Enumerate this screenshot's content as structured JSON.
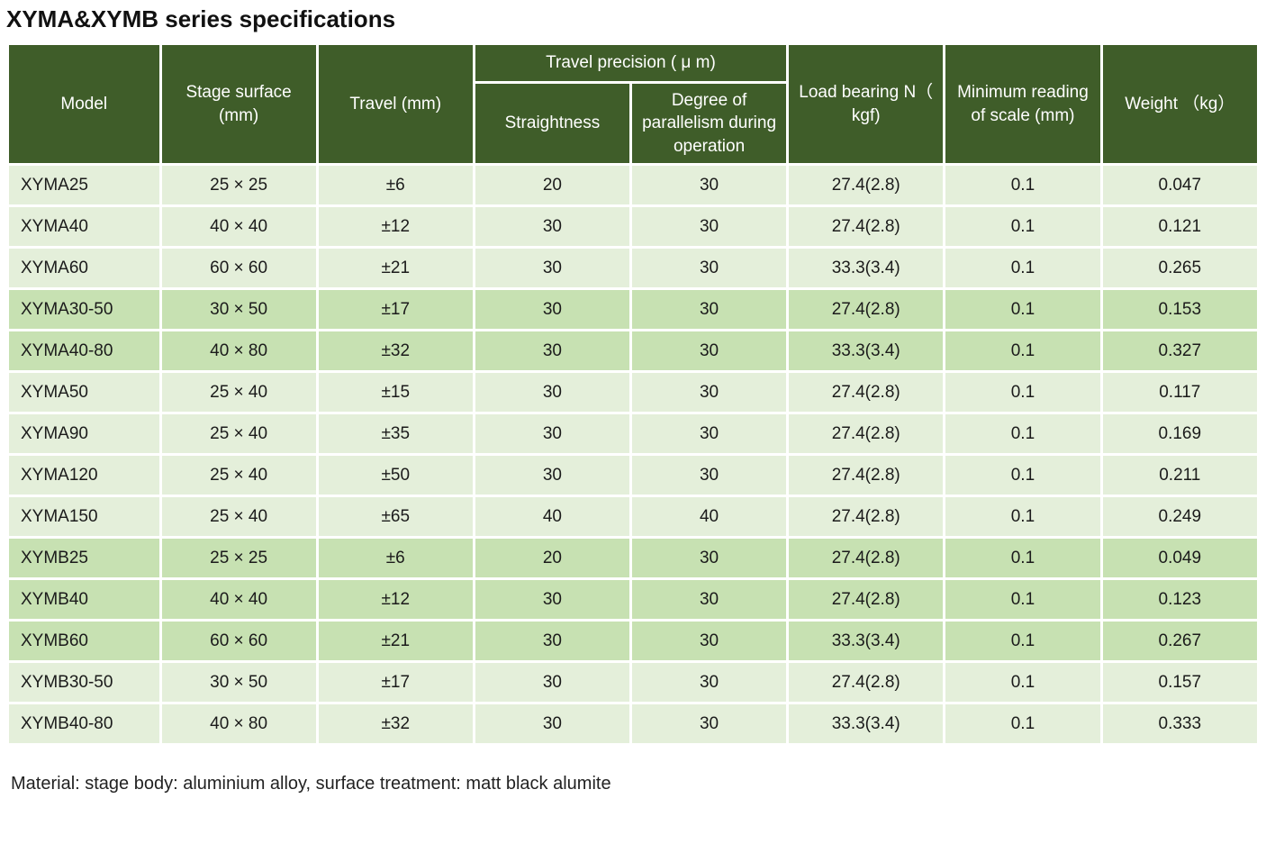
{
  "page": {
    "title": "XYMA&XYMB series specifications",
    "footnote": "Material: stage body: aluminium alloy, surface treatment: matt black alumite"
  },
  "colors": {
    "header_bg": "#3f5d29",
    "header_text": "#ffffff",
    "row_light_bg": "#e4efda",
    "row_medium_bg": "#c7e1b2",
    "grid_lines": "#ffffff",
    "cell_text": "#1b1b1b"
  },
  "table": {
    "headers": {
      "model": "Model",
      "stage_surface": "Stage surface\n(mm)",
      "travel": "Travel (mm)",
      "travel_precision_group": "Travel precision ( μ m)",
      "straightness": "Straightness",
      "parallelism": "Degree of\nparallelism during\noperation",
      "load_bearing": "Load bearing N（\nkgf)",
      "min_reading": "Minimum reading\nof scale (mm)",
      "weight": "Weight （kg）"
    },
    "column_keys": [
      "model",
      "surface",
      "travel",
      "straightness",
      "parallelism",
      "load",
      "reading",
      "weight"
    ],
    "rows": [
      {
        "model": "XYMA25",
        "surface": "25 × 25",
        "travel": "±6",
        "straightness": "20",
        "parallelism": "30",
        "load": "27.4(2.8)",
        "reading": "0.1",
        "weight": "0.047",
        "shade": "light"
      },
      {
        "model": "XYMA40",
        "surface": "40 × 40",
        "travel": "±12",
        "straightness": "30",
        "parallelism": "30",
        "load": "27.4(2.8)",
        "reading": "0.1",
        "weight": "0.121",
        "shade": "light"
      },
      {
        "model": "XYMA60",
        "surface": "60 × 60",
        "travel": "±21",
        "straightness": "30",
        "parallelism": "30",
        "load": "33.3(3.4)",
        "reading": "0.1",
        "weight": "0.265",
        "shade": "light"
      },
      {
        "model": "XYMA30-50",
        "surface": "30 × 50",
        "travel": "±17",
        "straightness": "30",
        "parallelism": "30",
        "load": "27.4(2.8)",
        "reading": "0.1",
        "weight": "0.153",
        "shade": "medium"
      },
      {
        "model": "XYMA40-80",
        "surface": "40 × 80",
        "travel": "±32",
        "straightness": "30",
        "parallelism": "30",
        "load": "33.3(3.4)",
        "reading": "0.1",
        "weight": "0.327",
        "shade": "medium"
      },
      {
        "model": "XYMA50",
        "surface": "25 × 40",
        "travel": "±15",
        "straightness": "30",
        "parallelism": "30",
        "load": "27.4(2.8)",
        "reading": "0.1",
        "weight": "0.117",
        "shade": "light"
      },
      {
        "model": "XYMA90",
        "surface": "25 × 40",
        "travel": "±35",
        "straightness": "30",
        "parallelism": "30",
        "load": "27.4(2.8)",
        "reading": "0.1",
        "weight": "0.169",
        "shade": "light"
      },
      {
        "model": "XYMA120",
        "surface": "25 × 40",
        "travel": "±50",
        "straightness": "30",
        "parallelism": "30",
        "load": "27.4(2.8)",
        "reading": "0.1",
        "weight": "0.211",
        "shade": "light"
      },
      {
        "model": "XYMA150",
        "surface": "25 × 40",
        "travel": "±65",
        "straightness": "40",
        "parallelism": "40",
        "load": "27.4(2.8)",
        "reading": "0.1",
        "weight": "0.249",
        "shade": "light"
      },
      {
        "model": "XYMB25",
        "surface": "25 × 25",
        "travel": "±6",
        "straightness": "20",
        "parallelism": "30",
        "load": "27.4(2.8)",
        "reading": "0.1",
        "weight": "0.049",
        "shade": "medium"
      },
      {
        "model": "XYMB40",
        "surface": "40 × 40",
        "travel": "±12",
        "straightness": "30",
        "parallelism": "30",
        "load": "27.4(2.8)",
        "reading": "0.1",
        "weight": "0.123",
        "shade": "medium"
      },
      {
        "model": "XYMB60",
        "surface": "60 × 60",
        "travel": "±21",
        "straightness": "30",
        "parallelism": "30",
        "load": "33.3(3.4)",
        "reading": "0.1",
        "weight": "0.267",
        "shade": "medium"
      },
      {
        "model": "XYMB30-50",
        "surface": "30 × 50",
        "travel": "±17",
        "straightness": "30",
        "parallelism": "30",
        "load": "27.4(2.8)",
        "reading": "0.1",
        "weight": "0.157",
        "shade": "light"
      },
      {
        "model": "XYMB40-80",
        "surface": "40 × 80",
        "travel": "±32",
        "straightness": "30",
        "parallelism": "30",
        "load": "33.3(3.4)",
        "reading": "0.1",
        "weight": "0.333",
        "shade": "light"
      }
    ]
  }
}
